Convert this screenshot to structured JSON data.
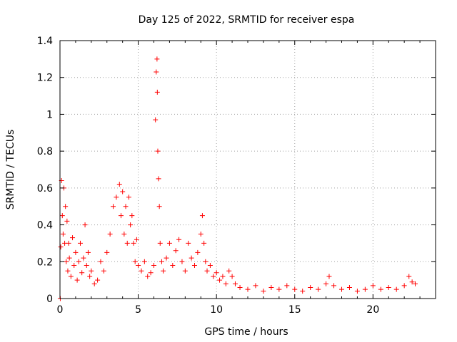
{
  "chart_data": {
    "type": "scatter",
    "title": "Day 125 of 2022, SRMTID for receiver espa",
    "xlabel": "GPS time / hours",
    "ylabel": "SRMTID / TECUs",
    "xlim": [
      0,
      24
    ],
    "ylim": [
      0,
      1.4
    ],
    "x_ticks": [
      0,
      5,
      10,
      15,
      20
    ],
    "x_tick_labels": [
      "0",
      "5",
      "10",
      "15",
      "20"
    ],
    "y_ticks": [
      0,
      0.2,
      0.4,
      0.6,
      0.8,
      1.0,
      1.2,
      1.4
    ],
    "y_tick_labels": [
      "0",
      "0.2",
      "0.4",
      "0.6",
      "0.8",
      "1",
      "1.2",
      "1.4"
    ],
    "grid": true,
    "marker": "+",
    "series": [
      {
        "name": "SRMTID",
        "color": "#ff0000",
        "x": [
          0.02,
          0.05,
          0.1,
          0.15,
          0.2,
          0.25,
          0.3,
          0.35,
          0.4,
          0.45,
          0.5,
          0.55,
          0.6,
          0.7,
          0.8,
          0.9,
          1.0,
          1.1,
          1.2,
          1.3,
          1.4,
          1.5,
          1.6,
          1.7,
          1.8,
          1.9,
          2.0,
          2.2,
          2.4,
          2.6,
          2.8,
          3.0,
          3.2,
          3.4,
          3.6,
          3.8,
          3.9,
          4.0,
          4.1,
          4.2,
          4.3,
          4.4,
          4.5,
          4.6,
          4.7,
          4.8,
          4.9,
          5.0,
          5.2,
          5.4,
          5.6,
          5.8,
          6.0,
          6.1,
          6.15,
          6.2,
          6.22,
          6.25,
          6.3,
          6.35,
          6.4,
          6.5,
          6.6,
          6.8,
          7.0,
          7.2,
          7.4,
          7.6,
          7.8,
          8.0,
          8.2,
          8.4,
          8.6,
          8.8,
          9.0,
          9.1,
          9.2,
          9.3,
          9.4,
          9.6,
          9.8,
          10.0,
          10.2,
          10.4,
          10.6,
          10.8,
          11.0,
          11.2,
          11.5,
          12.0,
          12.5,
          13.0,
          13.5,
          14.0,
          14.5,
          15.0,
          15.5,
          16.0,
          16.5,
          17.0,
          17.2,
          17.5,
          18.0,
          18.5,
          19.0,
          19.5,
          20.0,
          20.5,
          21.0,
          21.5,
          22.0,
          22.3,
          22.5,
          22.7
        ],
        "y": [
          0.0,
          0.28,
          0.64,
          0.45,
          0.35,
          0.6,
          0.3,
          0.5,
          0.2,
          0.42,
          0.15,
          0.3,
          0.22,
          0.12,
          0.33,
          0.18,
          0.25,
          0.1,
          0.2,
          0.3,
          0.14,
          0.22,
          0.4,
          0.18,
          0.25,
          0.12,
          0.15,
          0.08,
          0.1,
          0.2,
          0.15,
          0.25,
          0.35,
          0.5,
          0.55,
          0.62,
          0.45,
          0.58,
          0.35,
          0.5,
          0.3,
          0.55,
          0.4,
          0.45,
          0.3,
          0.2,
          0.32,
          0.18,
          0.15,
          0.2,
          0.12,
          0.14,
          0.18,
          0.97,
          1.23,
          1.3,
          1.12,
          0.8,
          0.65,
          0.5,
          0.3,
          0.2,
          0.15,
          0.22,
          0.3,
          0.18,
          0.26,
          0.32,
          0.2,
          0.15,
          0.3,
          0.22,
          0.18,
          0.25,
          0.35,
          0.45,
          0.3,
          0.2,
          0.15,
          0.18,
          0.12,
          0.14,
          0.1,
          0.12,
          0.08,
          0.15,
          0.12,
          0.08,
          0.06,
          0.05,
          0.07,
          0.04,
          0.06,
          0.05,
          0.07,
          0.05,
          0.04,
          0.06,
          0.05,
          0.08,
          0.12,
          0.07,
          0.05,
          0.06,
          0.04,
          0.05,
          0.07,
          0.05,
          0.06,
          0.05,
          0.07,
          0.12,
          0.09,
          0.08
        ]
      }
    ]
  }
}
